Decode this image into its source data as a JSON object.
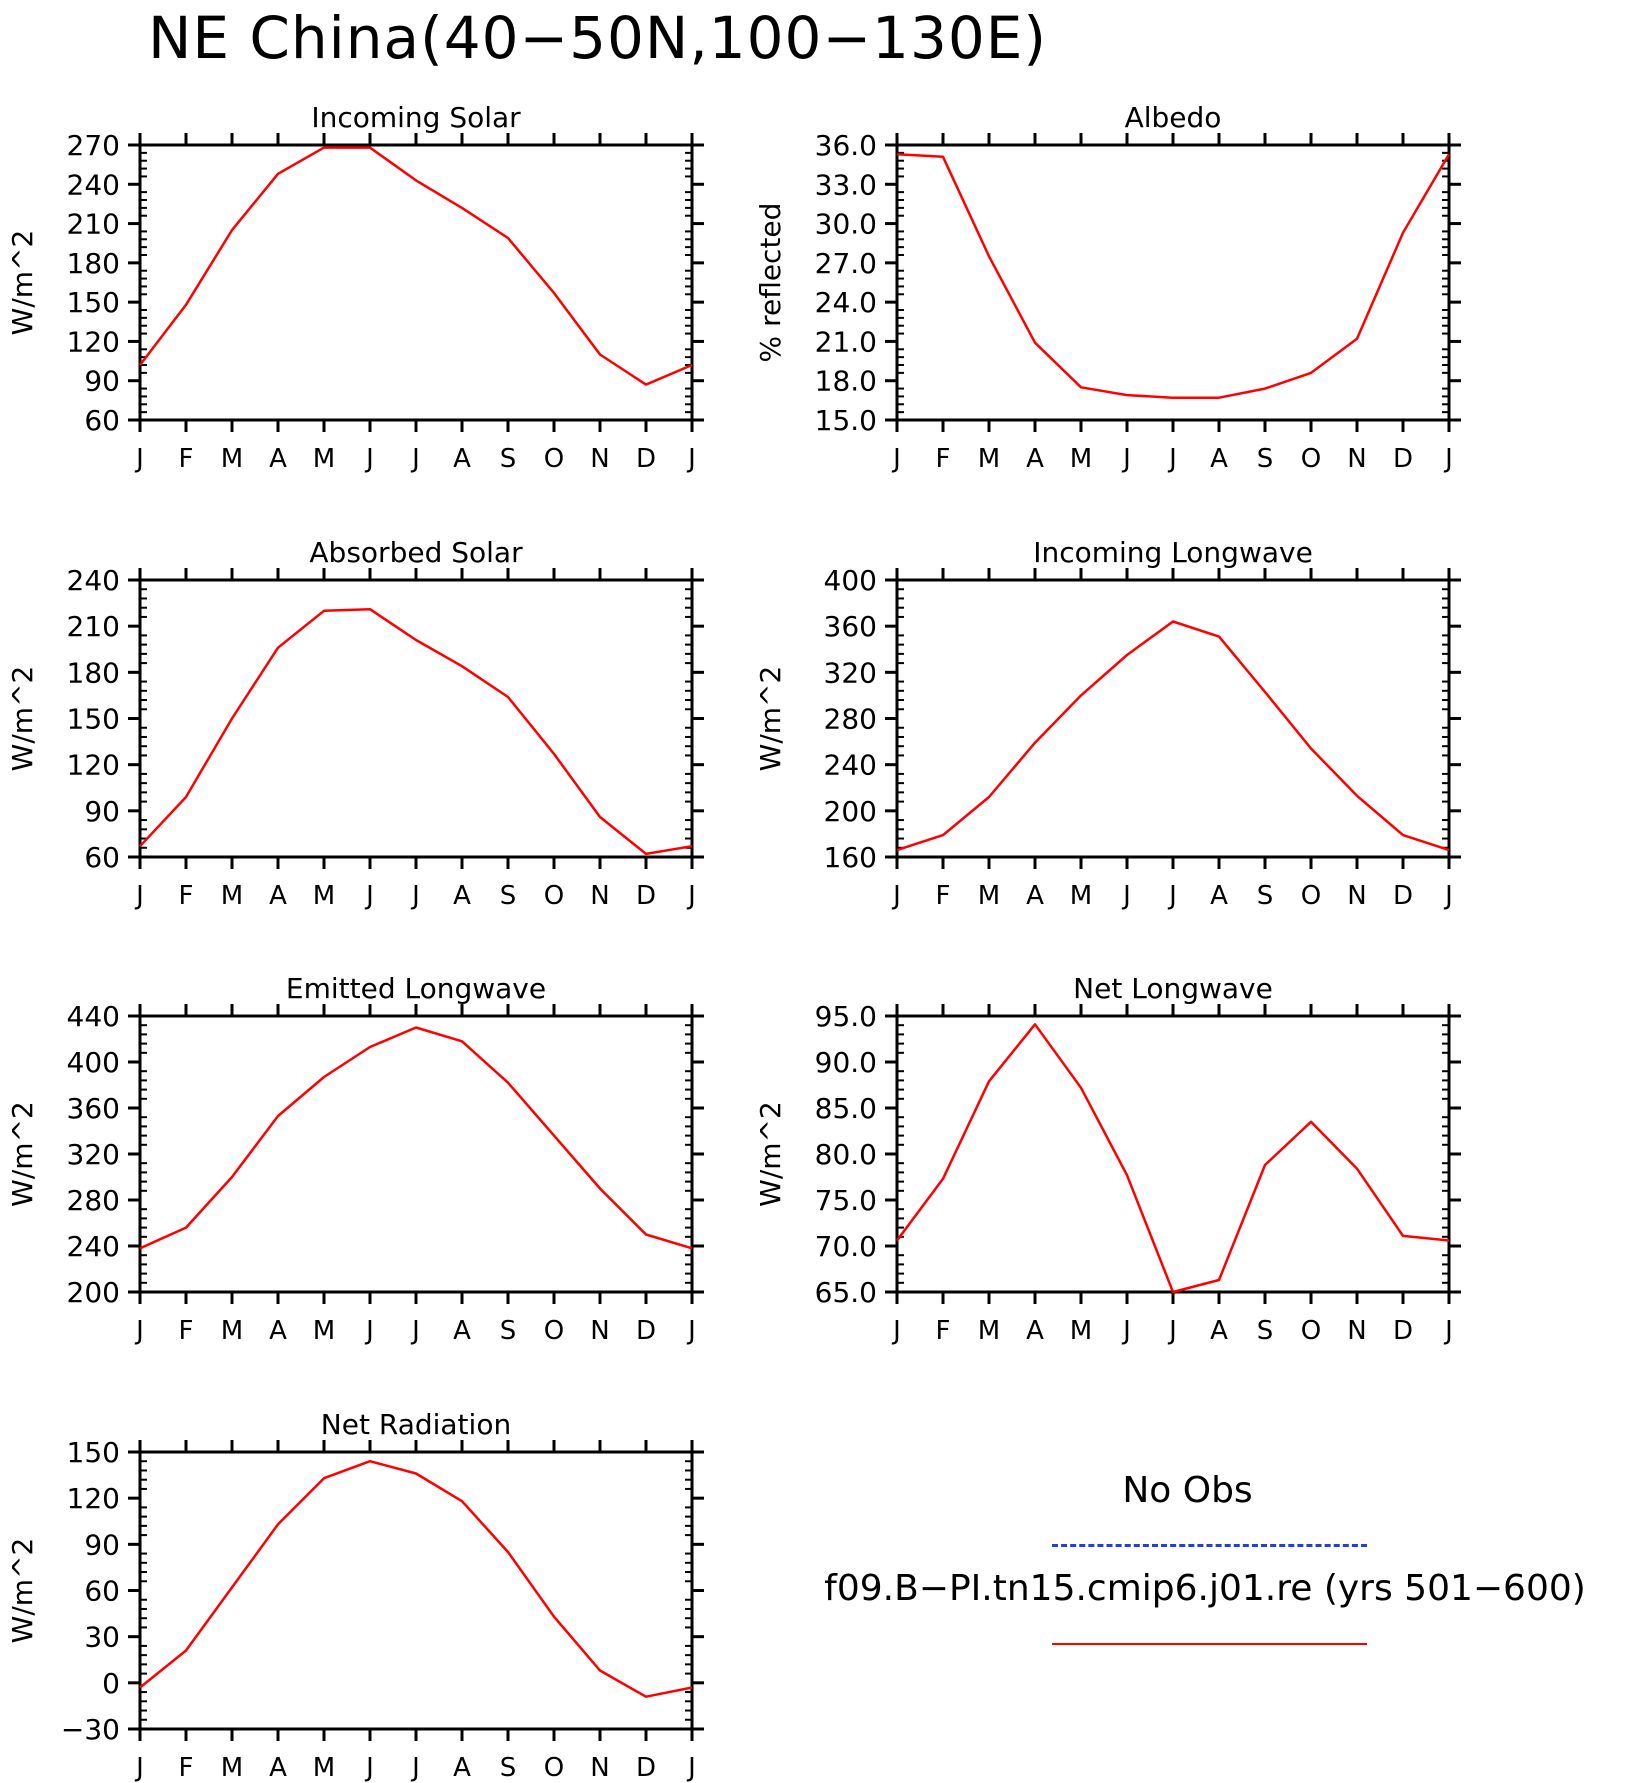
{
  "title": "NE China(40−50N,100−130E)",
  "months": [
    "J",
    "F",
    "M",
    "A",
    "M",
    "J",
    "J",
    "A",
    "S",
    "O",
    "N",
    "D",
    "J"
  ],
  "colors": {
    "model": "#ff0000",
    "obs": "#1f3fe0",
    "axis": "#000000"
  },
  "legend": {
    "obs_label": "No Obs",
    "model_label": "f09.B−PI.tn15.cmip6.j01.re (yrs 501−600)"
  },
  "chart_data": [
    {
      "type": "line",
      "title": "Incoming Solar",
      "ylabel": "W/m^2",
      "ylim": [
        60,
        270
      ],
      "yticks": [
        "60",
        "90",
        "120",
        "150",
        "180",
        "210",
        "240",
        "270"
      ],
      "categories": [
        "J",
        "F",
        "M",
        "A",
        "M",
        "J",
        "J",
        "A",
        "S",
        "O",
        "N",
        "D",
        "J"
      ],
      "series": [
        {
          "values": [
            102,
            148,
            205,
            248,
            268,
            268,
            243,
            222,
            199,
            157,
            110,
            87,
            102
          ]
        }
      ]
    },
    {
      "type": "line",
      "title": "Albedo",
      "ylabel": "% reflected",
      "ylim": [
        15.0,
        36.0
      ],
      "yticks": [
        "15.0",
        "18.0",
        "21.0",
        "24.0",
        "27.0",
        "30.0",
        "33.0",
        "36.0"
      ],
      "categories": [
        "J",
        "F",
        "M",
        "A",
        "M",
        "J",
        "J",
        "A",
        "S",
        "O",
        "N",
        "D",
        "J"
      ],
      "series": [
        {
          "values": [
            35.3,
            35.1,
            27.5,
            20.9,
            17.5,
            16.9,
            16.7,
            16.7,
            17.4,
            18.6,
            21.2,
            29.3,
            35.3
          ]
        }
      ]
    },
    {
      "type": "line",
      "title": "Absorbed Solar",
      "ylabel": "W/m^2",
      "ylim": [
        60,
        240
      ],
      "yticks": [
        "60",
        "90",
        "120",
        "150",
        "180",
        "210",
        "240"
      ],
      "categories": [
        "J",
        "F",
        "M",
        "A",
        "M",
        "J",
        "J",
        "A",
        "S",
        "O",
        "N",
        "D",
        "J"
      ],
      "series": [
        {
          "values": [
            67,
            99,
            150,
            196,
            220,
            221,
            201,
            184,
            164,
            127,
            86,
            62,
            67
          ]
        }
      ]
    },
    {
      "type": "line",
      "title": "Incoming Longwave",
      "ylabel": "W/m^2",
      "ylim": [
        160,
        400
      ],
      "yticks": [
        "160",
        "200",
        "240",
        "280",
        "320",
        "360",
        "400"
      ],
      "categories": [
        "J",
        "F",
        "M",
        "A",
        "M",
        "J",
        "J",
        "A",
        "S",
        "O",
        "N",
        "D",
        "J"
      ],
      "series": [
        {
          "values": [
            166,
            179,
            212,
            259,
            300,
            335,
            364,
            351,
            303,
            254,
            213,
            179,
            166
          ]
        }
      ]
    },
    {
      "type": "line",
      "title": "Emitted Longwave",
      "ylabel": "W/m^2",
      "ylim": [
        200,
        440
      ],
      "yticks": [
        "200",
        "240",
        "280",
        "320",
        "360",
        "400",
        "440"
      ],
      "categories": [
        "J",
        "F",
        "M",
        "A",
        "M",
        "J",
        "J",
        "A",
        "S",
        "O",
        "N",
        "D",
        "J"
      ],
      "series": [
        {
          "values": [
            238,
            256,
            300,
            353,
            387,
            413,
            430,
            418,
            382,
            336,
            290,
            250,
            238
          ]
        }
      ]
    },
    {
      "type": "line",
      "title": "Net Longwave",
      "ylabel": "W/m^2",
      "ylim": [
        65.0,
        95.0
      ],
      "yticks": [
        "65.0",
        "70.0",
        "75.0",
        "80.0",
        "85.0",
        "90.0",
        "95.0"
      ],
      "categories": [
        "J",
        "F",
        "M",
        "A",
        "M",
        "J",
        "J",
        "A",
        "S",
        "O",
        "N",
        "D",
        "J"
      ],
      "series": [
        {
          "values": [
            70.6,
            77.3,
            87.9,
            94.1,
            87.2,
            77.7,
            65.0,
            66.3,
            78.8,
            83.5,
            78.4,
            71.1,
            70.6
          ]
        }
      ]
    },
    {
      "type": "line",
      "title": "Net Radiation",
      "ylabel": "W/m^2",
      "ylim": [
        -30,
        150
      ],
      "yticks": [
        "−30",
        "0",
        "30",
        "60",
        "90",
        "120",
        "150"
      ],
      "categories": [
        "J",
        "F",
        "M",
        "A",
        "M",
        "J",
        "J",
        "A",
        "S",
        "O",
        "N",
        "D",
        "J"
      ],
      "series": [
        {
          "values": [
            -3,
            21,
            62,
            103,
            133,
            144,
            136,
            118,
            85,
            43,
            8,
            -9,
            -3
          ]
        }
      ]
    }
  ]
}
